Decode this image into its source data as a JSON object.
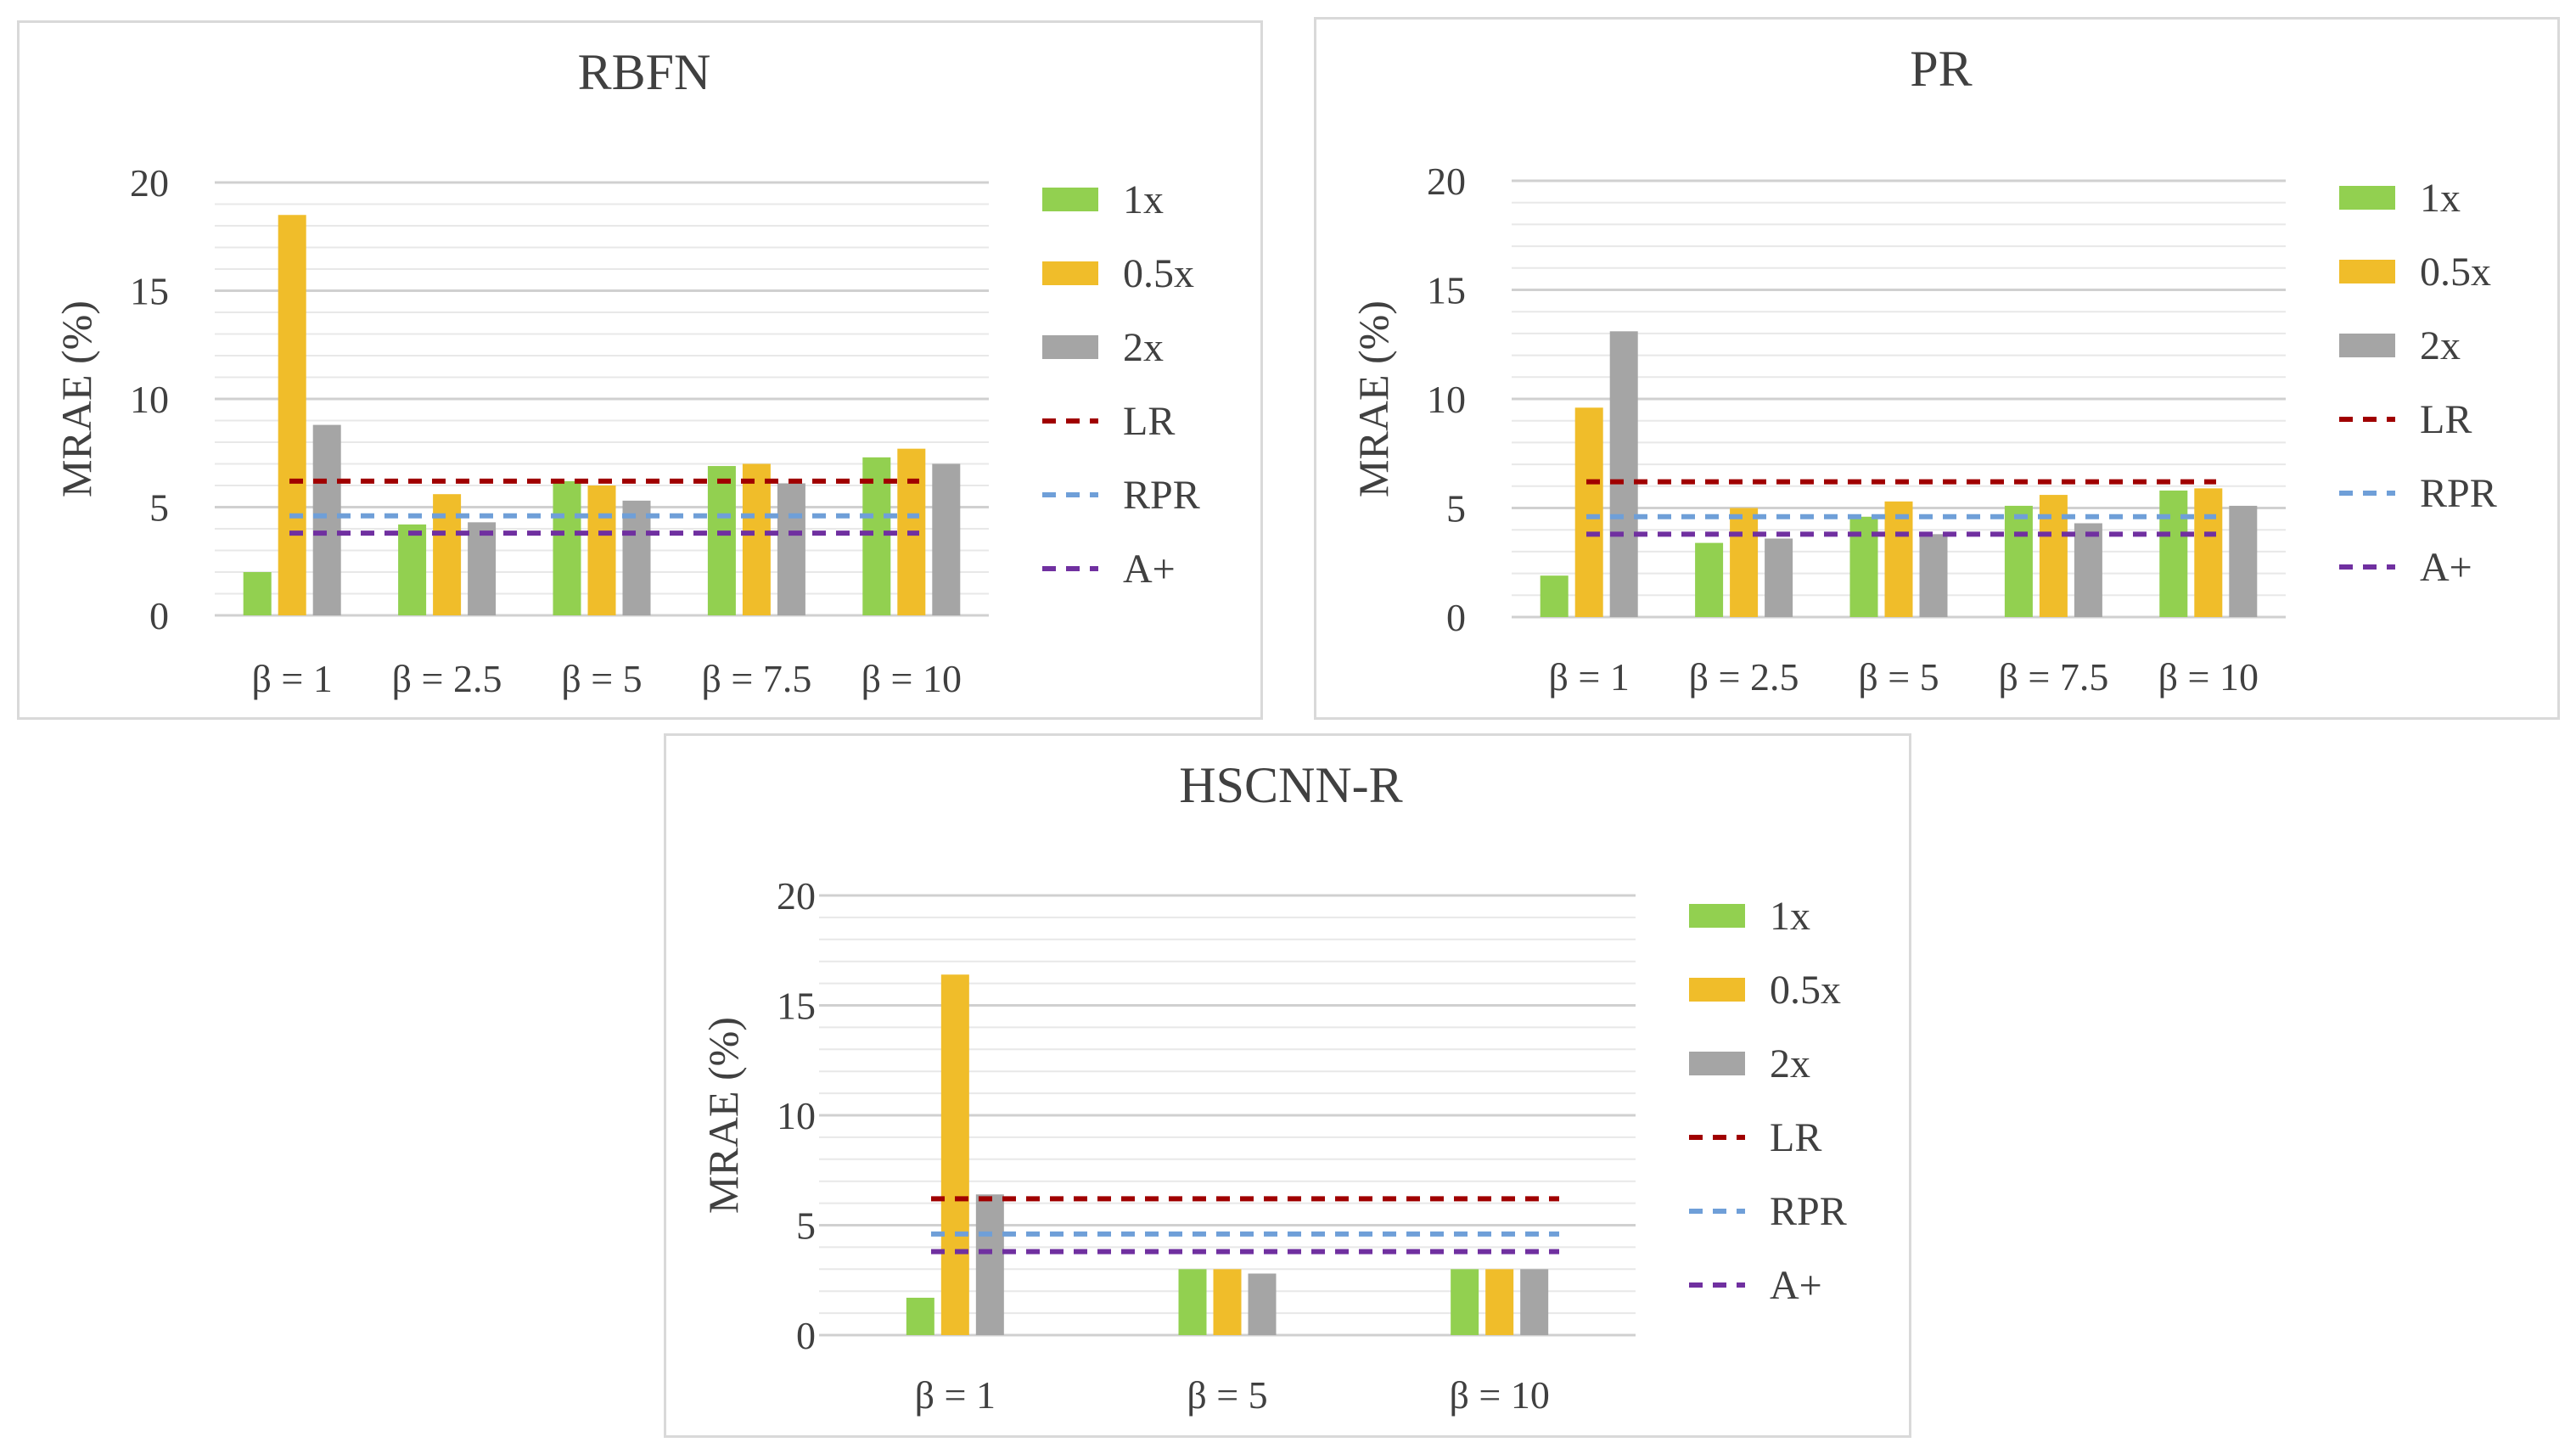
{
  "legend": {
    "items": [
      {
        "label": "1x",
        "kind": "bar",
        "color": "#92d050"
      },
      {
        "label": "0.5x",
        "kind": "bar",
        "color": "#f0bd2a"
      },
      {
        "label": "2x",
        "kind": "bar",
        "color": "#a5a5a5"
      },
      {
        "label": "LR",
        "kind": "line",
        "color": "#a00000"
      },
      {
        "label": "RPR",
        "kind": "line",
        "color": "#6f9fd8"
      },
      {
        "label": "A+",
        "kind": "line",
        "color": "#7030a0"
      }
    ]
  },
  "chart_data": [
    {
      "type": "bar",
      "title": "RBFN",
      "ylabel": "MRAE (%)",
      "xlabel": "",
      "ylim": [
        0,
        20
      ],
      "yticks": [
        "0",
        "5",
        "10",
        "15",
        "20"
      ],
      "categories": [
        "β = 1",
        "β = 2.5",
        "β = 5",
        "β = 7.5",
        "β = 10"
      ],
      "series": [
        {
          "name": "1x",
          "color": "#92d050",
          "values": [
            2.0,
            4.2,
            6.2,
            6.9,
            7.3
          ]
        },
        {
          "name": "0.5x",
          "color": "#f0bd2a",
          "values": [
            18.5,
            5.6,
            6.0,
            7.0,
            7.7
          ]
        },
        {
          "name": "2x",
          "color": "#a5a5a5",
          "values": [
            8.8,
            4.3,
            5.3,
            6.1,
            7.0
          ]
        }
      ],
      "reference_lines": [
        {
          "name": "LR",
          "color": "#a00000",
          "value": 6.2
        },
        {
          "name": "RPR",
          "color": "#6f9fd8",
          "value": 4.6
        },
        {
          "name": "A+",
          "color": "#7030a0",
          "value": 3.8
        }
      ],
      "legend_position": "right",
      "grid": true
    },
    {
      "type": "bar",
      "title": "PR",
      "ylabel": "MRAE (%)",
      "xlabel": "",
      "ylim": [
        0,
        20
      ],
      "yticks": [
        "0",
        "5",
        "10",
        "15",
        "20"
      ],
      "categories": [
        "β = 1",
        "β = 2.5",
        "β = 5",
        "β = 7.5",
        "β = 10"
      ],
      "series": [
        {
          "name": "1x",
          "color": "#92d050",
          "values": [
            1.9,
            3.4,
            4.6,
            5.1,
            5.8
          ]
        },
        {
          "name": "0.5x",
          "color": "#f0bd2a",
          "values": [
            9.6,
            5.0,
            5.3,
            5.6,
            5.9
          ]
        },
        {
          "name": "2x",
          "color": "#a5a5a5",
          "values": [
            13.1,
            3.6,
            3.8,
            4.3,
            5.1
          ]
        }
      ],
      "reference_lines": [
        {
          "name": "LR",
          "color": "#a00000",
          "value": 6.2
        },
        {
          "name": "RPR",
          "color": "#6f9fd8",
          "value": 4.6
        },
        {
          "name": "A+",
          "color": "#7030a0",
          "value": 3.8
        }
      ],
      "legend_position": "right",
      "grid": true
    },
    {
      "type": "bar",
      "title": "HSCNN-R",
      "ylabel": "MRAE (%)",
      "xlabel": "",
      "ylim": [
        0,
        20
      ],
      "yticks": [
        "0",
        "5",
        "10",
        "15",
        "20"
      ],
      "categories": [
        "β = 1",
        "β = 5",
        "β = 10"
      ],
      "series": [
        {
          "name": "1x",
          "color": "#92d050",
          "values": [
            1.7,
            3.0,
            3.0
          ]
        },
        {
          "name": "0.5x",
          "color": "#f0bd2a",
          "values": [
            16.4,
            3.0,
            3.0
          ]
        },
        {
          "name": "2x",
          "color": "#a5a5a5",
          "values": [
            6.4,
            2.8,
            3.0
          ]
        }
      ],
      "reference_lines": [
        {
          "name": "LR",
          "color": "#a00000",
          "value": 6.2
        },
        {
          "name": "RPR",
          "color": "#6f9fd8",
          "value": 4.6
        },
        {
          "name": "A+",
          "color": "#7030a0",
          "value": 3.8
        }
      ],
      "legend_position": "right",
      "grid": true
    }
  ]
}
